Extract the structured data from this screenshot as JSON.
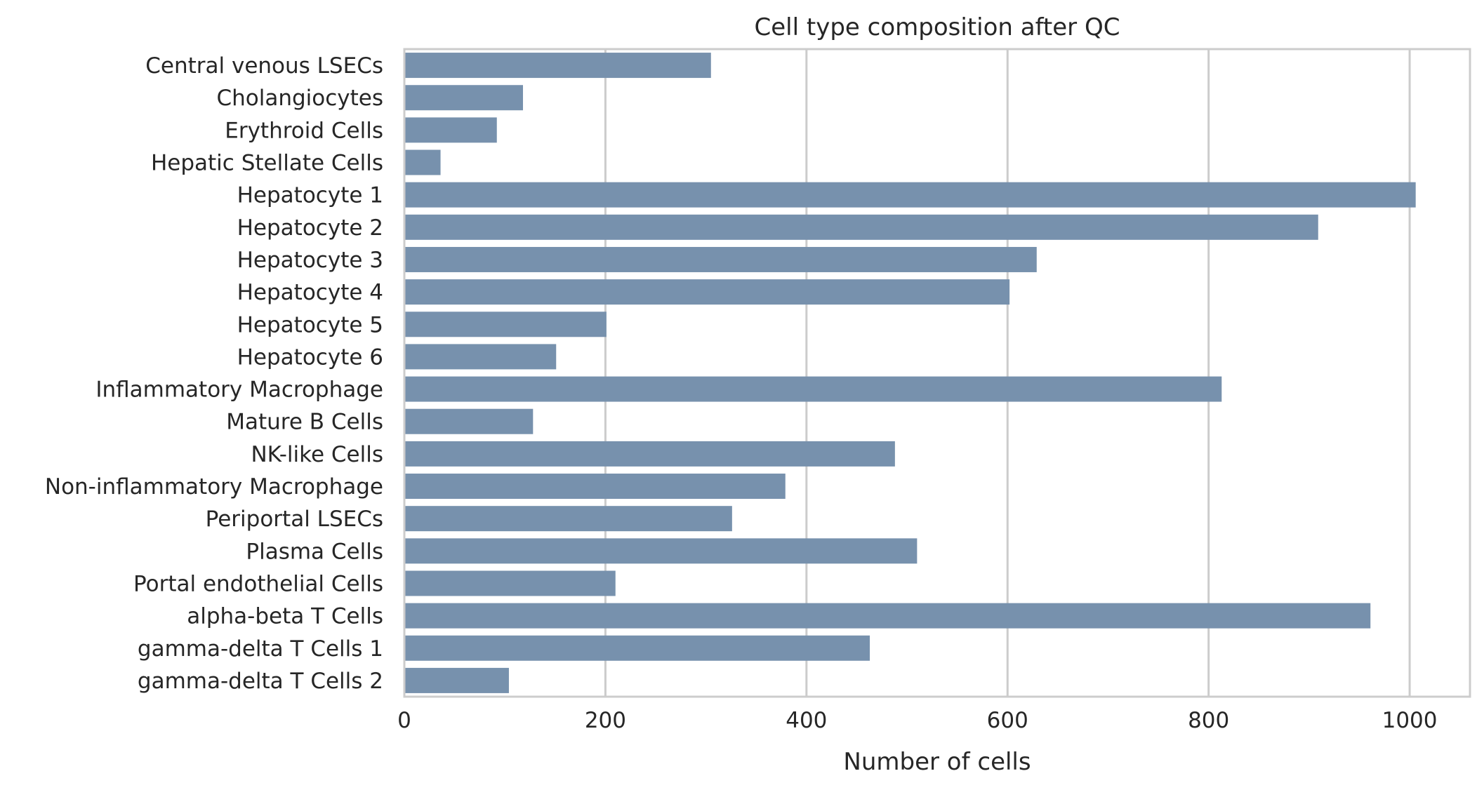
{
  "chart_data": {
    "type": "bar",
    "orientation": "horizontal",
    "title": "Cell type composition after QC",
    "xlabel": "Number of cells",
    "ylabel": "",
    "xlim": [
      0,
      1060
    ],
    "xticks": [
      0,
      200,
      400,
      600,
      800,
      1000
    ],
    "grid": "vertical",
    "bar_color": "#7791ad",
    "categories": [
      "Central venous LSECs",
      "Cholangiocytes",
      "Erythroid Cells",
      "Hepatic Stellate Cells",
      "Hepatocyte 1",
      "Hepatocyte 2",
      "Hepatocyte 3",
      "Hepatocyte 4",
      "Hepatocyte 5",
      "Hepatocyte 6",
      "Inflammatory Macrophage",
      "Mature B Cells",
      "NK-like Cells",
      "Non-inflammatory Macrophage",
      "Periportal LSECs",
      "Plasma Cells",
      "Portal endothelial Cells",
      "alpha-beta T Cells",
      "gamma-delta T Cells 1",
      "gamma-delta T Cells 2"
    ],
    "values": [
      305,
      118,
      92,
      36,
      1006,
      909,
      629,
      602,
      201,
      151,
      813,
      128,
      488,
      379,
      326,
      510,
      210,
      961,
      463,
      104
    ]
  }
}
